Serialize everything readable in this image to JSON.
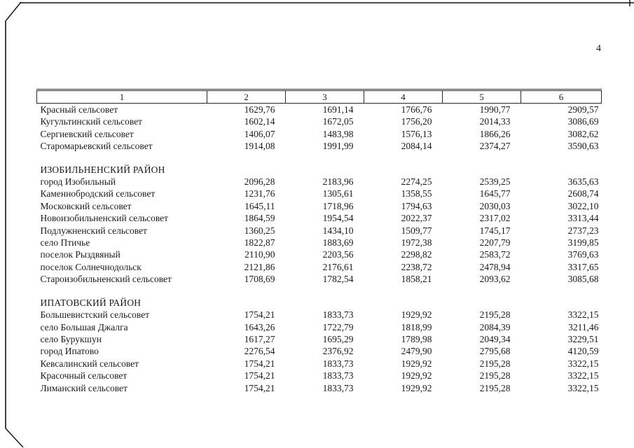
{
  "page": {
    "number": "4"
  },
  "colors": {
    "ink": "#1b1b1b",
    "paper": "#ffffff"
  },
  "table": {
    "header": [
      "1",
      "2",
      "3",
      "4",
      "5",
      "6"
    ],
    "sections": [
      {
        "title": "",
        "rows": [
          {
            "name": "Красный сельсовет",
            "values": [
              "1629,76",
              "1691,14",
              "1766,76",
              "1990,77",
              "2909,57"
            ]
          },
          {
            "name": "Кугультинский сельсовет",
            "values": [
              "1602,14",
              "1672,05",
              "1756,20",
              "2014,33",
              "3086,69"
            ]
          },
          {
            "name": "Сергиевский сельсовет",
            "values": [
              "1406,07",
              "1483,98",
              "1576,13",
              "1866,26",
              "3082,62"
            ]
          },
          {
            "name": "Старомарьевский сельсовет",
            "values": [
              "1914,08",
              "1991,99",
              "2084,14",
              "2374,27",
              "3590,63"
            ]
          }
        ]
      },
      {
        "title": "ИЗОБИЛЬНЕНСКИЙ РАЙОН",
        "rows": [
          {
            "name": "город Изобильный",
            "values": [
              "2096,28",
              "2183,96",
              "2274,25",
              "2539,25",
              "3635,63"
            ]
          },
          {
            "name": "Каменнобродский сельсовет",
            "values": [
              "1231,76",
              "1305,61",
              "1358,55",
              "1645,77",
              "2608,74"
            ]
          },
          {
            "name": "Московский сельсовет",
            "values": [
              "1645,11",
              "1718,96",
              "1794,63",
              "2030,03",
              "3022,10"
            ]
          },
          {
            "name": "Новоизобильненский сельсовет",
            "values": [
              "1864,59",
              "1954,54",
              "2022,37",
              "2317,02",
              "3313,44"
            ]
          },
          {
            "name": "Подлужненский сельсовет",
            "values": [
              "1360,25",
              "1434,10",
              "1509,77",
              "1745,17",
              "2737,23"
            ]
          },
          {
            "name": "село Птичье",
            "values": [
              "1822,87",
              "1883,69",
              "1972,38",
              "2207,79",
              "3199,85"
            ]
          },
          {
            "name": "поселок Рыздвяный",
            "values": [
              "2110,90",
              "2203,56",
              "2298,82",
              "2583,72",
              "3769,63"
            ]
          },
          {
            "name": "поселок Солнечнодольск",
            "values": [
              "2121,86",
              "2176,61",
              "2238,72",
              "2478,94",
              "3317,65"
            ]
          },
          {
            "name": "Староизобильненский сельсовет",
            "values": [
              "1708,69",
              "1782,54",
              "1858,21",
              "2093,62",
              "3085,68"
            ]
          }
        ]
      },
      {
        "title": "ИПАТОВСКИЙ РАЙОН",
        "rows": [
          {
            "name": "Большевистский сельсовет",
            "values": [
              "1754,21",
              "1833,73",
              "1929,92",
              "2195,28",
              "3322,15"
            ]
          },
          {
            "name": "село Большая Джалга",
            "values": [
              "1643,26",
              "1722,79",
              "1818,99",
              "2084,39",
              "3211,46"
            ]
          },
          {
            "name": "село Бурукшун",
            "values": [
              "1617,27",
              "1695,29",
              "1789,98",
              "2049,34",
              "3229,51"
            ]
          },
          {
            "name": "город Ипатово",
            "values": [
              "2276,54",
              "2376,92",
              "2479,90",
              "2795,68",
              "4120,59"
            ]
          },
          {
            "name": "Кевсалинский сельсовет",
            "values": [
              "1754,21",
              "1833,73",
              "1929,92",
              "2195,28",
              "3322,15"
            ]
          },
          {
            "name": "Красочный сельсовет",
            "values": [
              "1754,21",
              "1833,73",
              "1929,92",
              "2195,28",
              "3322,15"
            ]
          },
          {
            "name": "Лиманский сельсовет",
            "values": [
              "1754,21",
              "1833,73",
              "1929,92",
              "2195,28",
              "3322,15"
            ]
          }
        ]
      }
    ]
  }
}
